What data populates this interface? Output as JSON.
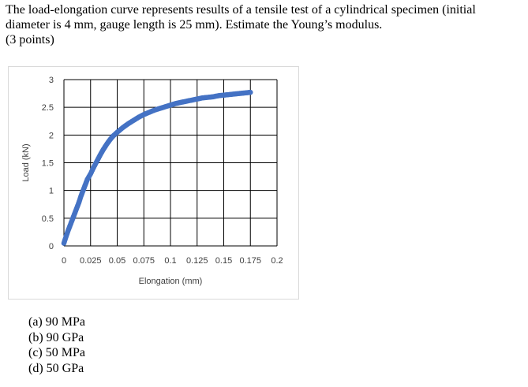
{
  "question": {
    "line1": "The load-elongation curve represents results of a tensile test of a cylindrical specimen (initial",
    "line2": "diameter is 4 mm, gauge length is 25 mm). Estimate the Young’s modulus.",
    "line3": "(3 points)"
  },
  "options": [
    "(a) 90 MPa",
    "(b) 90 GPa",
    "(c) 50 MPa",
    "(d) 50 GPa"
  ],
  "chart_data": {
    "type": "scatter",
    "xlabel": "Elongation (mm)",
    "ylabel": "Load (kN)",
    "xlim": [
      0,
      0.2
    ],
    "ylim": [
      0,
      3
    ],
    "x_ticks": [
      "0",
      "0.025",
      "0.05",
      "0.075",
      "0.1",
      "0.125",
      "0.15",
      "0.175",
      "0.2"
    ],
    "y_ticks": [
      "0",
      "0.5",
      "1",
      "1.5",
      "2",
      "2.5",
      "3"
    ],
    "grid": true,
    "marker_color": "#4472C4",
    "series": [
      {
        "x": [
          0,
          0.002,
          0.004,
          0.006,
          0.008,
          0.01,
          0.012,
          0.014,
          0.016,
          0.018,
          0.02,
          0.022,
          0.025,
          0.028,
          0.031,
          0.034,
          0.037,
          0.04,
          0.043,
          0.046,
          0.05,
          0.055,
          0.06,
          0.065,
          0.07,
          0.075,
          0.08,
          0.085,
          0.09,
          0.095,
          0.1,
          0.105,
          0.11,
          0.115,
          0.12,
          0.125,
          0.13,
          0.135,
          0.14,
          0.145,
          0.15,
          0.155,
          0.16,
          0.165,
          0.17,
          0.175
        ],
        "y": [
          0.05,
          0.17,
          0.28,
          0.38,
          0.48,
          0.58,
          0.68,
          0.78,
          0.9,
          1.0,
          1.1,
          1.2,
          1.3,
          1.42,
          1.53,
          1.64,
          1.74,
          1.83,
          1.91,
          1.98,
          2.05,
          2.13,
          2.2,
          2.26,
          2.32,
          2.37,
          2.41,
          2.45,
          2.48,
          2.51,
          2.54,
          2.57,
          2.59,
          2.61,
          2.63,
          2.65,
          2.67,
          2.68,
          2.69,
          2.71,
          2.72,
          2.73,
          2.74,
          2.75,
          2.76,
          2.77
        ]
      }
    ]
  }
}
